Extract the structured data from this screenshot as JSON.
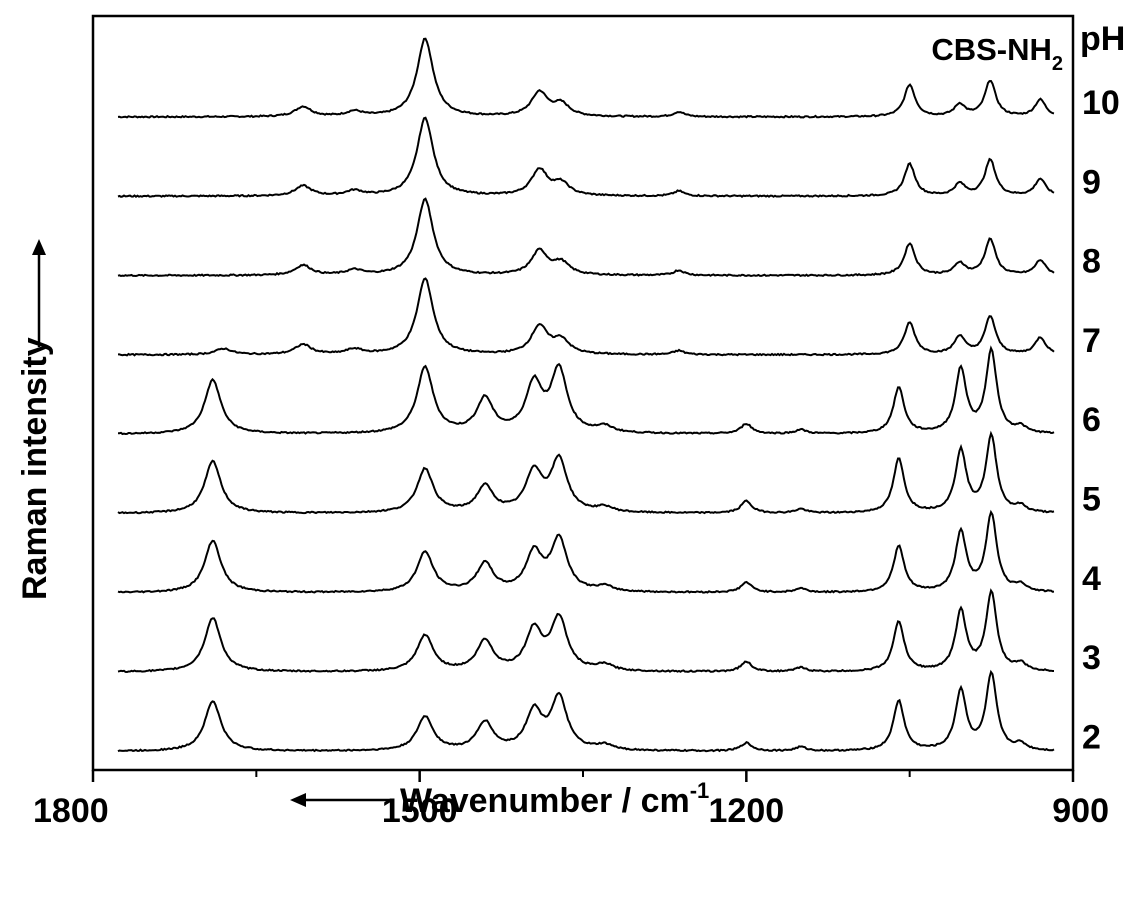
{
  "chart_data": {
    "type": "line",
    "title": "CBS-NH",
    "title_subscript": "2",
    "xlabel": "Wavenumber / cm",
    "xlabel_superscript": "-1",
    "ylabel": "Raman intensity",
    "xlim": [
      1800,
      900
    ],
    "x_reversed": true,
    "xticks": [
      1800,
      1500,
      1200,
      900
    ],
    "xtick_labels": [
      "1800",
      "1500",
      "1200",
      "900"
    ],
    "minor_xticks": [
      1650,
      1350,
      1050
    ],
    "legend_header": "pH",
    "grid": false,
    "y_units": "arbitrary, traces vertically offset",
    "series": [
      {
        "name": "10",
        "peaks": [
          [
            1495,
            78
          ],
          [
            1607,
            10
          ],
          [
            1560,
            5
          ],
          [
            1390,
            24
          ],
          [
            1370,
            12
          ],
          [
            1262,
            5
          ],
          [
            1050,
            32
          ],
          [
            1004,
            12
          ],
          [
            976,
            36
          ],
          [
            930,
            17
          ]
        ]
      },
      {
        "name": "9",
        "peaks": [
          [
            1495,
            78
          ],
          [
            1607,
            10
          ],
          [
            1560,
            5
          ],
          [
            1390,
            26
          ],
          [
            1370,
            12
          ],
          [
            1262,
            5
          ],
          [
            1050,
            32
          ],
          [
            1004,
            12
          ],
          [
            976,
            36
          ],
          [
            930,
            17
          ]
        ]
      },
      {
        "name": "8",
        "peaks": [
          [
            1495,
            76
          ],
          [
            1607,
            10
          ],
          [
            1560,
            5
          ],
          [
            1390,
            24
          ],
          [
            1370,
            12
          ],
          [
            1262,
            5
          ],
          [
            1050,
            32
          ],
          [
            1004,
            12
          ],
          [
            976,
            36
          ],
          [
            930,
            15
          ]
        ]
      },
      {
        "name": "7",
        "peaks": [
          [
            1495,
            76
          ],
          [
            1607,
            10
          ],
          [
            1560,
            5
          ],
          [
            1680,
            6
          ],
          [
            1390,
            28
          ],
          [
            1370,
            14
          ],
          [
            1262,
            4
          ],
          [
            1050,
            32
          ],
          [
            1004,
            18
          ],
          [
            976,
            38
          ],
          [
            930,
            17
          ]
        ]
      },
      {
        "name": "6",
        "peaks": [
          [
            1690,
            54
          ],
          [
            1495,
            66
          ],
          [
            1440,
            34
          ],
          [
            1395,
            48
          ],
          [
            1372,
            62
          ],
          [
            1330,
            6
          ],
          [
            1200,
            10
          ],
          [
            1150,
            4
          ],
          [
            1060,
            46
          ],
          [
            1003,
            64
          ],
          [
            975,
            82
          ],
          [
            948,
            6
          ]
        ]
      },
      {
        "name": "5",
        "peaks": [
          [
            1690,
            52
          ],
          [
            1495,
            44
          ],
          [
            1440,
            26
          ],
          [
            1395,
            40
          ],
          [
            1372,
            52
          ],
          [
            1330,
            5
          ],
          [
            1200,
            12
          ],
          [
            1150,
            4
          ],
          [
            1060,
            54
          ],
          [
            1003,
            62
          ],
          [
            975,
            76
          ],
          [
            948,
            6
          ]
        ]
      },
      {
        "name": "4",
        "peaks": [
          [
            1690,
            52
          ],
          [
            1495,
            40
          ],
          [
            1440,
            28
          ],
          [
            1395,
            38
          ],
          [
            1372,
            52
          ],
          [
            1330,
            5
          ],
          [
            1200,
            10
          ],
          [
            1150,
            4
          ],
          [
            1060,
            46
          ],
          [
            1003,
            60
          ],
          [
            975,
            78
          ],
          [
            948,
            7
          ]
        ]
      },
      {
        "name": "3",
        "peaks": [
          [
            1690,
            54
          ],
          [
            1495,
            36
          ],
          [
            1440,
            30
          ],
          [
            1395,
            40
          ],
          [
            1372,
            52
          ],
          [
            1330,
            6
          ],
          [
            1200,
            10
          ],
          [
            1150,
            4
          ],
          [
            1060,
            50
          ],
          [
            1003,
            60
          ],
          [
            975,
            78
          ],
          [
            948,
            7
          ]
        ]
      },
      {
        "name": "2",
        "peaks": [
          [
            1690,
            50
          ],
          [
            1495,
            34
          ],
          [
            1440,
            28
          ],
          [
            1395,
            38
          ],
          [
            1372,
            52
          ],
          [
            1330,
            5
          ],
          [
            1200,
            8
          ],
          [
            1150,
            4
          ],
          [
            1060,
            50
          ],
          [
            1003,
            60
          ],
          [
            975,
            76
          ],
          [
            948,
            6
          ]
        ]
      }
    ]
  },
  "colors": {
    "line": "#000000",
    "background": "#ffffff"
  }
}
